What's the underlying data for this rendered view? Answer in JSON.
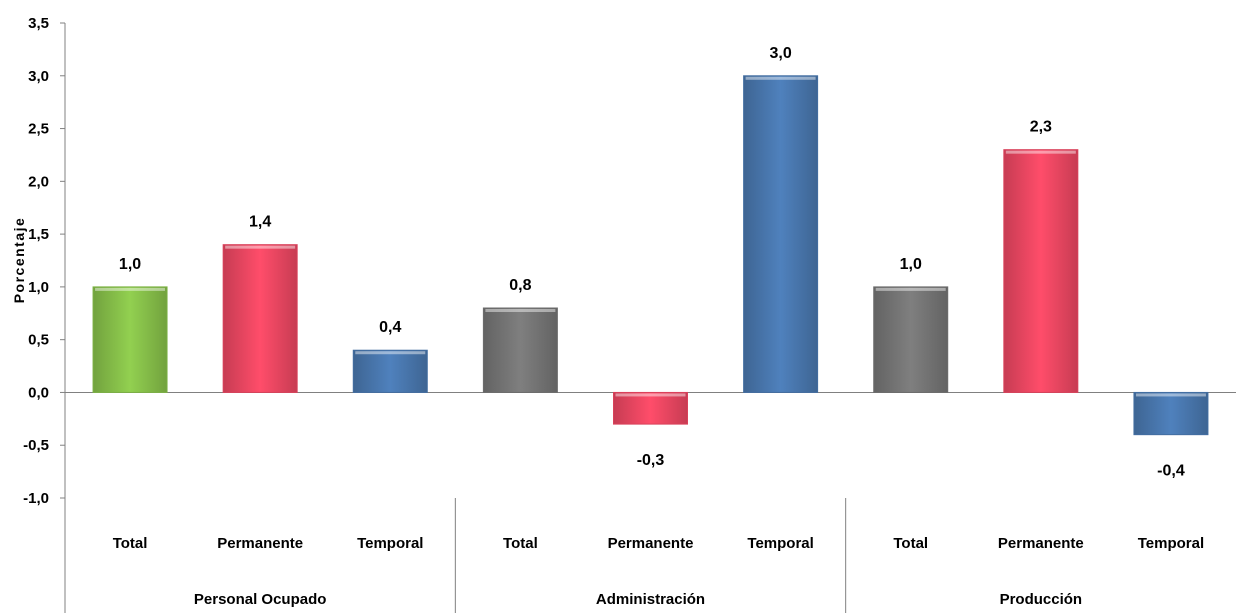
{
  "chart_data": {
    "type": "bar",
    "ylabel": "Porcentaje",
    "ylim": [
      -1.0,
      3.5
    ],
    "yticks": [
      "3,5",
      "3,0",
      "2,5",
      "2,0",
      "1,5",
      "1,0",
      "0,5",
      "0,0",
      "-0,5",
      "-1,0"
    ],
    "grid": false,
    "legend": "none",
    "groups": [
      {
        "name": "Personal Ocupado",
        "categories": [
          "Total",
          "Permanente",
          "Temporal"
        ],
        "values": [
          1.0,
          1.4,
          0.4
        ],
        "labels": [
          "1,0",
          "1,4",
          "0,4"
        ],
        "colors": [
          "#92D050",
          "#FF4D6A",
          "#4F81BD"
        ]
      },
      {
        "name": "Administración",
        "categories": [
          "Total",
          "Permanente",
          "Temporal"
        ],
        "values": [
          0.8,
          -0.3,
          3.0
        ],
        "labels": [
          "0,8",
          "-0,3",
          "3,0"
        ],
        "colors": [
          "#7F7F7F",
          "#FF4D6A",
          "#4F81BD"
        ]
      },
      {
        "name": "Producción",
        "categories": [
          "Total",
          "Permanente",
          "Temporal"
        ],
        "values": [
          1.0,
          2.3,
          -0.4
        ],
        "labels": [
          "1,0",
          "2,3",
          "-0,4"
        ],
        "colors": [
          "#7F7F7F",
          "#FF4D6A",
          "#4F81BD"
        ]
      }
    ]
  }
}
